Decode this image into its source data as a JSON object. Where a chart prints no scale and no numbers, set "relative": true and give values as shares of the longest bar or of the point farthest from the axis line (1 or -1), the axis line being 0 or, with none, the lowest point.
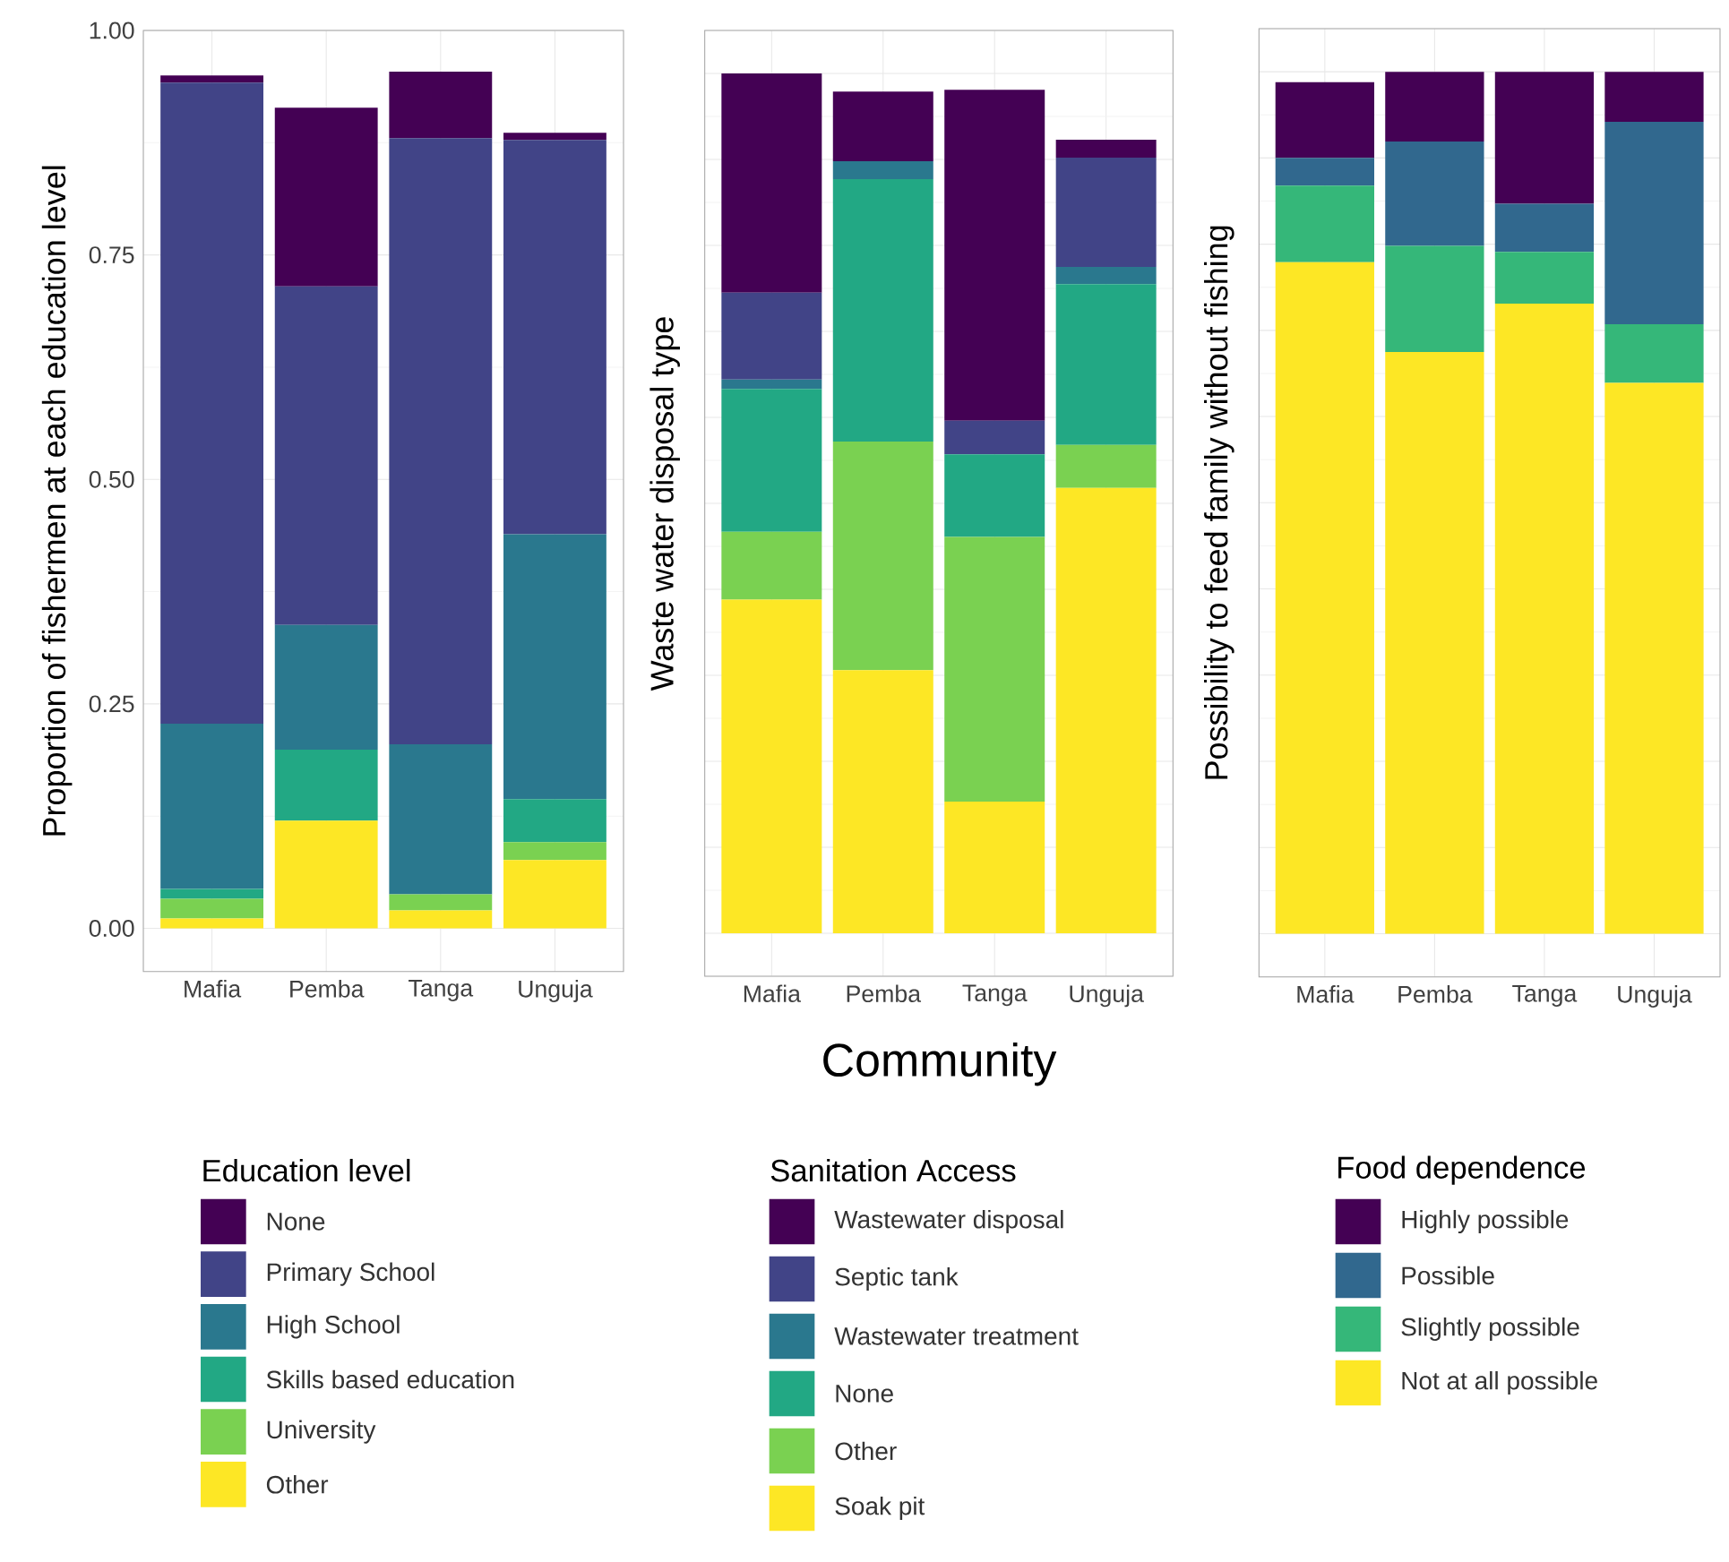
{
  "chart_data": [
    {
      "type": "bar",
      "stacked": true,
      "ylabel": "Proportion of fishermen at each education level",
      "legend_title": "Education level",
      "legend": "bottom",
      "grid": true,
      "categories": [
        "Mafia",
        "Pemba",
        "Tanga",
        "Unguja"
      ],
      "ylim": [
        -0.048,
        1.0
      ],
      "yticks": [
        {
          "value": 0,
          "label": "0.00"
        },
        {
          "value": 0.25,
          "label": "0.25"
        },
        {
          "value": 0.5,
          "label": "0.50"
        },
        {
          "value": 0.75,
          "label": "0.75"
        },
        {
          "value": 1,
          "label": "1.00"
        }
      ],
      "series": [
        {
          "name": "Other",
          "color": "#fde725",
          "values": [
            0.011,
            0.12,
            0.02,
            0.076
          ]
        },
        {
          "name": "University",
          "color": "#7ad151",
          "values": [
            0.022,
            0,
            0.018,
            0.02
          ]
        },
        {
          "name": "Skills based education",
          "color": "#22a884",
          "values": [
            0.011,
            0.079,
            0,
            0.048
          ]
        },
        {
          "name": "High School",
          "color": "#2a788e",
          "values": [
            0.184,
            0.139,
            0.167,
            0.295
          ]
        },
        {
          "name": "Primary School",
          "color": "#414487",
          "values": [
            0.714,
            0.377,
            0.675,
            0.439
          ]
        },
        {
          "name": "None",
          "color": "#440154",
          "values": [
            0.008,
            0.199,
            0.074,
            0.008
          ]
        }
      ]
    },
    {
      "type": "bar",
      "stacked": true,
      "ylabel": "Waste water disposal type",
      "xlabel": "Community",
      "legend_title": "Sanitation Access",
      "legend": "bottom",
      "grid": true,
      "categories": [
        "Mafia",
        "Pemba",
        "Tanga",
        "Unguja"
      ],
      "relative": true,
      "series": [
        {
          "name": "Soak pit",
          "color": "#fde725",
          "values": [
            0.388,
            0.306,
            0.153,
            0.518
          ]
        },
        {
          "name": "Other",
          "color": "#7ad151",
          "values": [
            0.079,
            0.266,
            0.308,
            0.05
          ]
        },
        {
          "name": "None",
          "color": "#22a884",
          "values": [
            0.166,
            0.305,
            0.096,
            0.187
          ]
        },
        {
          "name": "Wastewater treatment",
          "color": "#2a788e",
          "values": [
            0.011,
            0.021,
            0,
            0.02
          ]
        },
        {
          "name": "Septic tank",
          "color": "#414487",
          "values": [
            0.101,
            0,
            0.039,
            0.127
          ]
        },
        {
          "name": "Wastewater disposal",
          "color": "#440154",
          "values": [
            0.255,
            0.081,
            0.385,
            0.021
          ]
        }
      ]
    },
    {
      "type": "bar",
      "stacked": true,
      "ylabel": "Possibility to feed family without fishing",
      "legend_title": "Food dependence",
      "legend": "bottom",
      "grid": true,
      "categories": [
        "Mafia",
        "Pemba",
        "Tanga",
        "Unguja"
      ],
      "relative": true,
      "series": [
        {
          "name": "Not at all possible",
          "color": "#fde725",
          "values": [
            0.779,
            0.675,
            0.731,
            0.639
          ]
        },
        {
          "name": "Slightly possible",
          "color": "#35b779",
          "values": [
            0.089,
            0.123,
            0.06,
            0.068
          ]
        },
        {
          "name": "Possible",
          "color": "#31688e",
          "values": [
            0.032,
            0.121,
            0.056,
            0.235
          ]
        },
        {
          "name": "Highly possible",
          "color": "#440154",
          "values": [
            0.088,
            0.081,
            0.153,
            0.058
          ]
        }
      ]
    }
  ]
}
